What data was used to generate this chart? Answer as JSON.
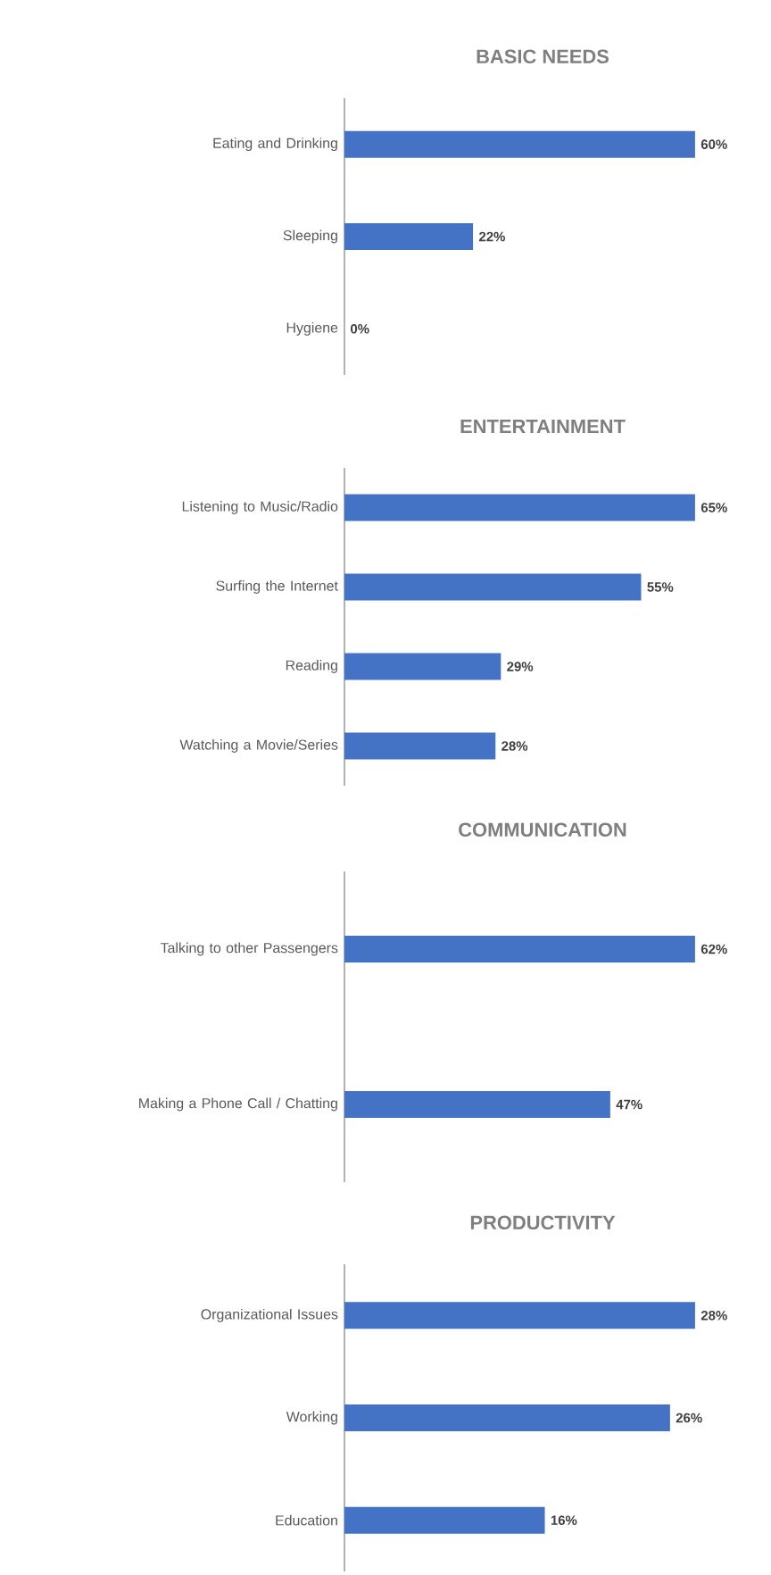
{
  "chart_data": [
    {
      "type": "bar",
      "orientation": "horizontal",
      "title": "BASIC NEEDS",
      "categories": [
        "Eating and Drinking",
        "Sleeping",
        "Hygiene"
      ],
      "values": [
        60,
        22,
        0
      ],
      "value_labels": [
        "60%",
        "22%",
        "0%"
      ],
      "color": "#4472c4"
    },
    {
      "type": "bar",
      "orientation": "horizontal",
      "title": "ENTERTAINMENT",
      "categories": [
        "Listening to Music/Radio",
        "Surfing the Internet",
        "Reading",
        "Watching a Movie/Series"
      ],
      "values": [
        65,
        55,
        29,
        28
      ],
      "value_labels": [
        "65%",
        "55%",
        "29%",
        "28%"
      ],
      "color": "#4472c4"
    },
    {
      "type": "bar",
      "orientation": "horizontal",
      "title": "COMMUNICATION",
      "categories": [
        "Talking to other Passengers",
        "Making a Phone Call / Chatting"
      ],
      "values": [
        62,
        47
      ],
      "value_labels": [
        "62%",
        "47%"
      ],
      "color": "#4472c4"
    },
    {
      "type": "bar",
      "orientation": "horizontal",
      "title": "PRODUCTIVITY",
      "categories": [
        "Organizational Issues",
        "Working",
        "Education"
      ],
      "values": [
        28,
        26,
        16
      ],
      "value_labels": [
        "28%",
        "26%",
        "16%"
      ],
      "color": "#4472c4"
    }
  ]
}
